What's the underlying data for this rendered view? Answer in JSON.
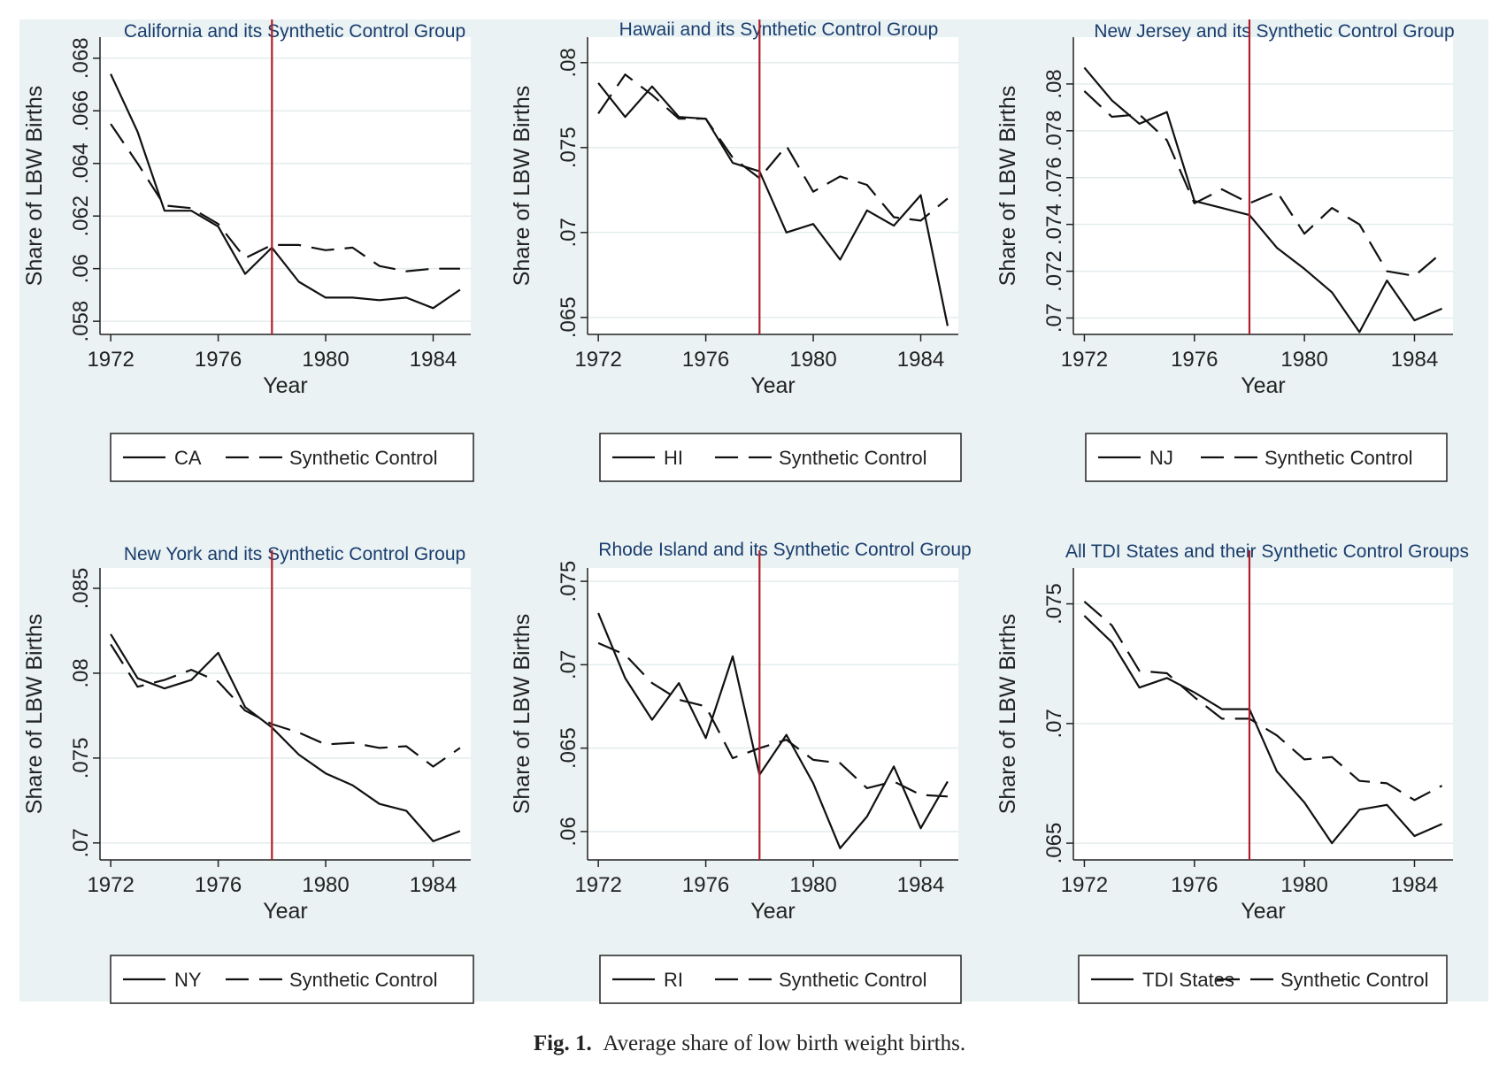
{
  "caption": {
    "label": "Fig. 1.",
    "text": "Average share of low birth weight births."
  },
  "colors": {
    "background": "#eaf2f3",
    "plot_area": "#ffffff",
    "title": "#1a3d6e",
    "treatment_line": "#b01e2a",
    "series": "#111111"
  },
  "chart_data": [
    {
      "type": "line",
      "title": "California and its Synthetic Control Group",
      "xlabel": "Year",
      "ylabel": "Share of LBW Births",
      "x": [
        1972,
        1973,
        1974,
        1975,
        1976,
        1977,
        1978,
        1979,
        1980,
        1981,
        1982,
        1983,
        1984,
        1985
      ],
      "xticks": [
        1972,
        1976,
        1980,
        1984
      ],
      "xtick_labels": [
        "1972",
        "1976",
        "1980",
        "1984"
      ],
      "xlim": [
        1971.6,
        1985.4
      ],
      "yticks": [
        0.058,
        0.06,
        0.062,
        0.064,
        0.066,
        0.068
      ],
      "ytick_labels": [
        ".058",
        ".06",
        ".062",
        ".064",
        ".066",
        ".068"
      ],
      "ylim": [
        0.0575,
        0.0688
      ],
      "vline": 1978,
      "series": [
        {
          "name": "CA",
          "style": "solid",
          "values": [
            0.0674,
            0.0652,
            0.0622,
            0.0622,
            0.0616,
            0.0598,
            0.0608,
            0.0595,
            0.0589,
            0.0589,
            0.0588,
            0.0589,
            0.0585,
            0.0592
          ]
        },
        {
          "name": "Synthetic Control",
          "style": "dashed",
          "values": [
            0.0655,
            0.064,
            0.0624,
            0.0623,
            0.0617,
            0.0604,
            0.0609,
            0.0609,
            0.0607,
            0.0608,
            0.0601,
            0.0599,
            0.06,
            0.06
          ]
        }
      ],
      "legend": {
        "position": "bottom",
        "entries": [
          "CA",
          "Synthetic Control"
        ]
      }
    },
    {
      "type": "line",
      "title": "Hawaii and its Synthetic Control Group",
      "xlabel": "Year",
      "ylabel": "Share of LBW Births",
      "x": [
        1972,
        1973,
        1974,
        1975,
        1976,
        1977,
        1978,
        1979,
        1980,
        1981,
        1982,
        1983,
        1984,
        1985
      ],
      "xticks": [
        1972,
        1976,
        1980,
        1984
      ],
      "xtick_labels": [
        "1972",
        "1976",
        "1980",
        "1984"
      ],
      "xlim": [
        1971.6,
        1985.4
      ],
      "yticks": [
        0.065,
        0.07,
        0.075,
        0.08
      ],
      "ytick_labels": [
        ".065",
        ".07",
        ".075",
        ".08"
      ],
      "ylim": [
        0.064,
        0.0815
      ],
      "vline": 1978,
      "series": [
        {
          "name": "HI",
          "style": "solid",
          "values": [
            0.0788,
            0.0768,
            0.0786,
            0.0768,
            0.0767,
            0.0741,
            0.0736,
            0.07,
            0.0705,
            0.0684,
            0.0713,
            0.0704,
            0.0722,
            0.0645
          ]
        },
        {
          "name": "Synthetic Control",
          "style": "dashed",
          "values": [
            0.077,
            0.0793,
            0.0781,
            0.0767,
            0.0767,
            0.0744,
            0.0732,
            0.0751,
            0.0724,
            0.0733,
            0.0728,
            0.0709,
            0.0707,
            0.072
          ]
        }
      ],
      "legend": {
        "position": "bottom",
        "entries": [
          "HI",
          "Synthetic Control"
        ]
      }
    },
    {
      "type": "line",
      "title": "New Jersey and its Synthetic Control Group",
      "xlabel": "Year",
      "ylabel": "Share of LBW Births",
      "x": [
        1972,
        1973,
        1974,
        1975,
        1976,
        1977,
        1978,
        1979,
        1980,
        1981,
        1982,
        1983,
        1984,
        1985
      ],
      "xticks": [
        1972,
        1976,
        1980,
        1984
      ],
      "xtick_labels": [
        "1972",
        "1976",
        "1980",
        "1984"
      ],
      "xlim": [
        1971.6,
        1985.4
      ],
      "yticks": [
        0.07,
        0.072,
        0.074,
        0.076,
        0.078,
        0.08
      ],
      "ytick_labels": [
        ".07",
        ".072",
        ".074",
        ".076",
        ".078",
        ".08"
      ],
      "ylim": [
        0.0693,
        0.082
      ],
      "vline": 1978,
      "series": [
        {
          "name": "NJ",
          "style": "solid",
          "values": [
            0.0807,
            0.0793,
            0.0783,
            0.0788,
            0.075,
            0.0747,
            0.0744,
            0.073,
            0.0721,
            0.0711,
            0.0694,
            0.0716,
            0.0699,
            0.0704
          ]
        },
        {
          "name": "Synthetic Control",
          "style": "dashed",
          "values": [
            0.0797,
            0.0786,
            0.0787,
            0.0776,
            0.0749,
            0.0755,
            0.0749,
            0.0754,
            0.0736,
            0.0747,
            0.074,
            0.072,
            0.0718,
            0.0728
          ]
        }
      ],
      "legend": {
        "position": "bottom",
        "entries": [
          "NJ",
          "Synthetic Control"
        ]
      }
    },
    {
      "type": "line",
      "title": "New York and its Synthetic Control Group",
      "xlabel": "Year",
      "ylabel": "Share of LBW Births",
      "x": [
        1972,
        1973,
        1974,
        1975,
        1976,
        1977,
        1978,
        1979,
        1980,
        1981,
        1982,
        1983,
        1984,
        1985
      ],
      "xticks": [
        1972,
        1976,
        1980,
        1984
      ],
      "xtick_labels": [
        "1972",
        "1976",
        "1980",
        "1984"
      ],
      "xlim": [
        1971.6,
        1985.4
      ],
      "yticks": [
        0.07,
        0.075,
        0.08,
        0.085
      ],
      "ytick_labels": [
        ".07",
        ".075",
        ".08",
        ".085"
      ],
      "ylim": [
        0.069,
        0.0862
      ],
      "vline": 1978,
      "series": [
        {
          "name": "NY",
          "style": "solid",
          "values": [
            0.0823,
            0.0797,
            0.0791,
            0.0796,
            0.0812,
            0.078,
            0.0768,
            0.0752,
            0.0741,
            0.0734,
            0.0723,
            0.0719,
            0.0701,
            0.0707
          ]
        },
        {
          "name": "Synthetic Control",
          "style": "dashed",
          "values": [
            0.0817,
            0.0792,
            0.0796,
            0.0802,
            0.0795,
            0.0778,
            0.077,
            0.0765,
            0.0758,
            0.0759,
            0.0756,
            0.0757,
            0.0745,
            0.0756
          ]
        }
      ],
      "legend": {
        "position": "bottom",
        "entries": [
          "NY",
          "Synthetic Control"
        ]
      }
    },
    {
      "type": "line",
      "title": "Rhode Island and its Synthetic Control Group",
      "xlabel": "Year",
      "ylabel": "Share of LBW Births",
      "x": [
        1972,
        1973,
        1974,
        1975,
        1976,
        1977,
        1978,
        1979,
        1980,
        1981,
        1982,
        1983,
        1984,
        1985
      ],
      "xticks": [
        1972,
        1976,
        1980,
        1984
      ],
      "xtick_labels": [
        "1972",
        "1976",
        "1980",
        "1984"
      ],
      "xlim": [
        1971.6,
        1985.4
      ],
      "yticks": [
        0.06,
        0.065,
        0.07,
        0.075
      ],
      "ytick_labels": [
        ".06",
        ".065",
        ".07",
        ".075"
      ],
      "ylim": [
        0.0583,
        0.0758
      ],
      "vline": 1978,
      "series": [
        {
          "name": "RI",
          "style": "solid",
          "values": [
            0.0731,
            0.0692,
            0.0667,
            0.0689,
            0.0656,
            0.0705,
            0.0634,
            0.0658,
            0.0629,
            0.059,
            0.0609,
            0.0639,
            0.0602,
            0.063
          ]
        },
        {
          "name": "Synthetic Control",
          "style": "dashed",
          "values": [
            0.0713,
            0.0706,
            0.0689,
            0.0679,
            0.0675,
            0.0644,
            0.065,
            0.0655,
            0.0643,
            0.0641,
            0.0626,
            0.063,
            0.0622,
            0.0621
          ]
        }
      ],
      "legend": {
        "position": "bottom",
        "entries": [
          "RI",
          "Synthetic Control"
        ]
      }
    },
    {
      "type": "line",
      "title": "All TDI States and their Synthetic Control Groups",
      "xlabel": "Year",
      "ylabel": "Share of LBW Births",
      "x": [
        1972,
        1973,
        1974,
        1975,
        1976,
        1977,
        1978,
        1979,
        1980,
        1981,
        1982,
        1983,
        1984,
        1985
      ],
      "xticks": [
        1972,
        1976,
        1980,
        1984
      ],
      "xtick_labels": [
        "1972",
        "1976",
        "1980",
        "1984"
      ],
      "xlim": [
        1971.6,
        1985.4
      ],
      "yticks": [
        0.065,
        0.07,
        0.075
      ],
      "ytick_labels": [
        ".065",
        ".07",
        ".075"
      ],
      "ylim": [
        0.0643,
        0.0765
      ],
      "vline": 1978,
      "series": [
        {
          "name": "TDI States",
          "style": "solid",
          "values": [
            0.0745,
            0.0734,
            0.0715,
            0.0719,
            0.0713,
            0.0706,
            0.0706,
            0.068,
            0.0667,
            0.065,
            0.0664,
            0.0666,
            0.0653,
            0.0658
          ]
        },
        {
          "name": "Synthetic Control",
          "style": "dashed",
          "values": [
            0.0751,
            0.0741,
            0.0722,
            0.0721,
            0.0711,
            0.0702,
            0.0702,
            0.0695,
            0.0685,
            0.0686,
            0.0676,
            0.0675,
            0.0668,
            0.0674
          ]
        }
      ],
      "legend": {
        "position": "bottom",
        "entries": [
          "TDI States",
          "Synthetic Control"
        ]
      }
    }
  ]
}
